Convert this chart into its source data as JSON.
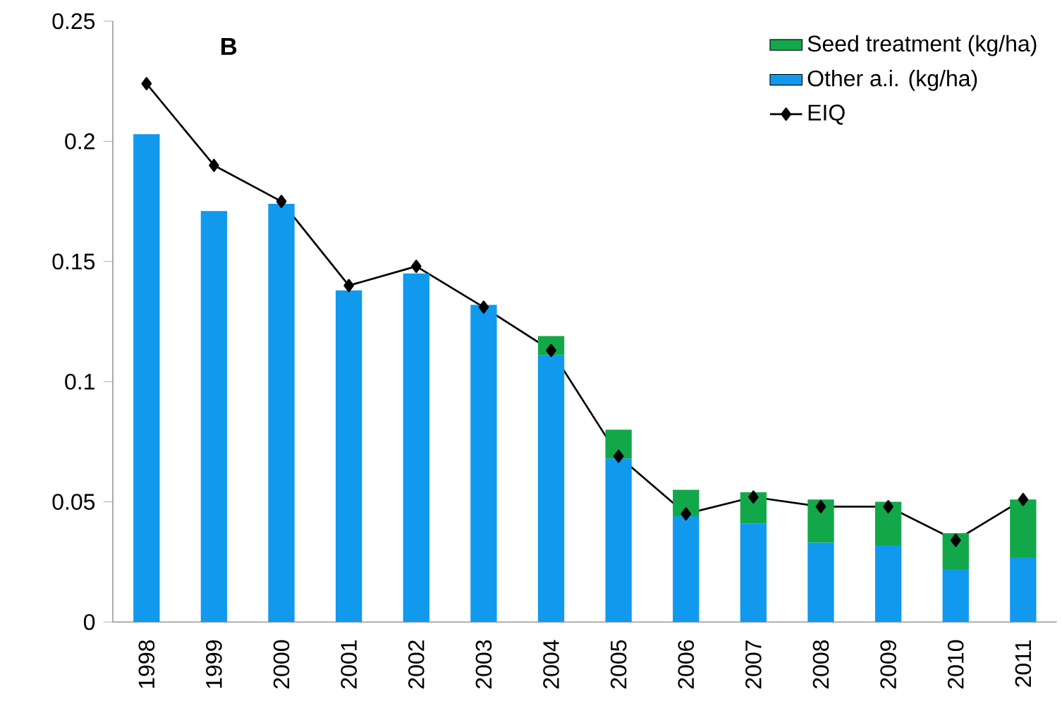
{
  "chart_data": {
    "type": "bar",
    "stacked": true,
    "categories": [
      "1998",
      "1999",
      "2000",
      "2001",
      "2002",
      "2003",
      "2004",
      "2005",
      "2006",
      "2007",
      "2008",
      "2009",
      "2010",
      "2011"
    ],
    "series": [
      {
        "name": "Other a.i. (kg/ha)",
        "color": "#1199ee",
        "values": [
          0.203,
          0.171,
          0.174,
          0.138,
          0.145,
          0.132,
          0.111,
          0.068,
          0.044,
          0.041,
          0.033,
          0.032,
          0.022,
          0.027
        ]
      },
      {
        "name": "Seed treatment (kg/ha)",
        "color": "#12a84a",
        "values": [
          0,
          0,
          0,
          0,
          0,
          0,
          0.008,
          0.012,
          0.011,
          0.013,
          0.018,
          0.018,
          0.015,
          0.024
        ]
      },
      {
        "name": "EIQ",
        "type": "line",
        "color": "#000000",
        "marker": "diamond",
        "values": [
          0.224,
          0.19,
          0.175,
          0.14,
          0.148,
          0.131,
          0.113,
          0.069,
          0.045,
          0.052,
          0.048,
          0.048,
          0.034,
          0.051
        ]
      }
    ],
    "ylim": [
      0,
      0.25
    ],
    "yticks": [
      0,
      0.05,
      0.1,
      0.15,
      0.2,
      0.25
    ],
    "grid": false,
    "legend": "top right",
    "annotations": [
      "B"
    ]
  }
}
